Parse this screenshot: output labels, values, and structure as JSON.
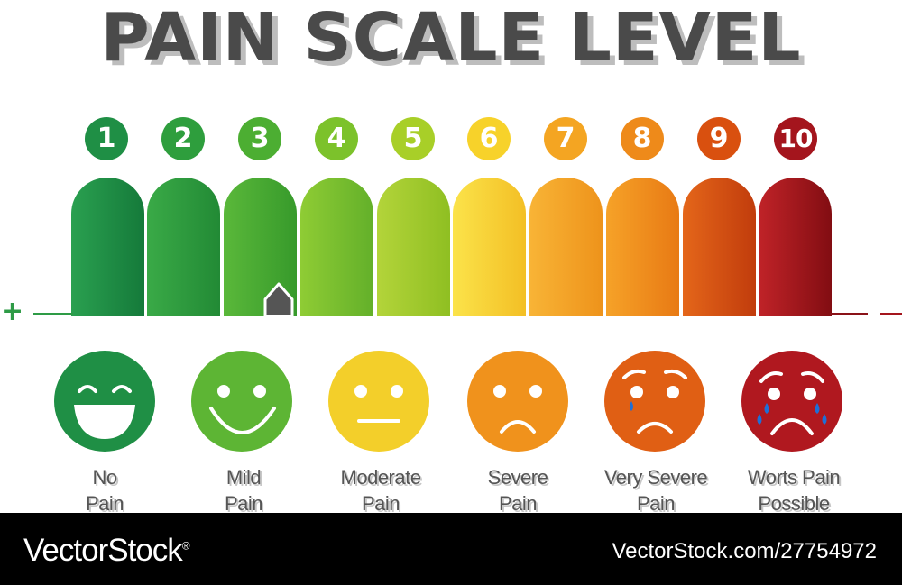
{
  "title": "PAIN SCALE LEVEL",
  "scale": [
    {
      "number": "1",
      "color": "#1f8f45"
    },
    {
      "number": "2",
      "color": "#2e9e3d"
    },
    {
      "number": "3",
      "color": "#4cae32"
    },
    {
      "number": "4",
      "color": "#7cc22b"
    },
    {
      "number": "5",
      "color": "#a8cf28"
    },
    {
      "number": "6",
      "color": "#f7d22a"
    },
    {
      "number": "7",
      "color": "#f4a522"
    },
    {
      "number": "8",
      "color": "#ee8a1a"
    },
    {
      "number": "9",
      "color": "#d9500f"
    },
    {
      "number": "10",
      "color": "#a4151d"
    }
  ],
  "marker_level": 3,
  "faces": [
    {
      "label_line1": "No",
      "label_line2": "Pain",
      "expression": "laughing",
      "color": "#1f8f45"
    },
    {
      "label_line1": "Mild",
      "label_line2": "Pain",
      "expression": "smiling",
      "color": "#5db534"
    },
    {
      "label_line1": "Moderate",
      "label_line2": "Pain",
      "expression": "neutral",
      "color": "#f3cf2a"
    },
    {
      "label_line1": "Severe",
      "label_line2": "Pain",
      "expression": "frowning",
      "color": "#f0921c"
    },
    {
      "label_line1": "Very Severe",
      "label_line2": "Pain",
      "expression": "crying",
      "color": "#e05f14"
    },
    {
      "label_line1": "Worts Pain",
      "label_line2": "Possible",
      "expression": "sobbing",
      "color": "#b0181f"
    }
  ],
  "footer": {
    "brand": "VectorStock",
    "registered_mark": "®",
    "stock_id": "VectorStock.com/27754972"
  }
}
